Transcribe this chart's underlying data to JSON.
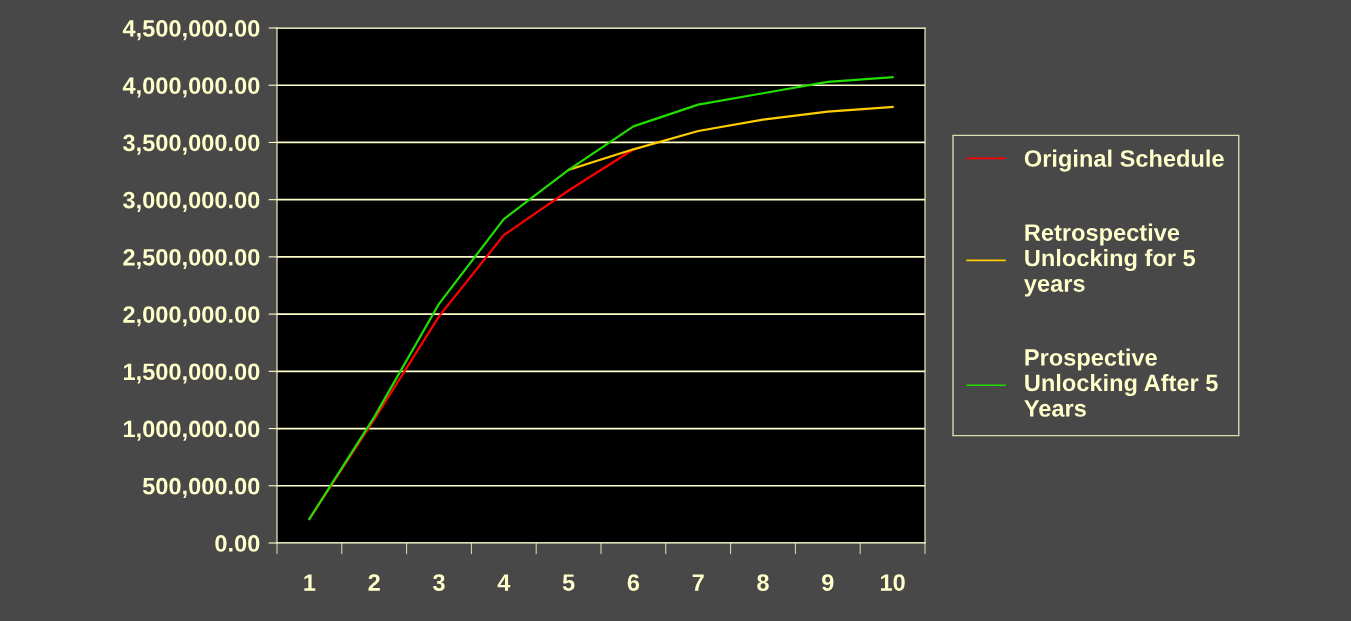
{
  "chart_data": {
    "type": "line",
    "categories": [
      "1",
      "2",
      "3",
      "4",
      "5",
      "6",
      "7",
      "8",
      "9",
      "10"
    ],
    "series": [
      {
        "name": "Original Schedule",
        "color": "#ff0000",
        "values": [
          210000,
          1080000,
          1980000,
          2690000,
          3080000,
          3440000,
          null,
          null,
          null,
          null
        ]
      },
      {
        "name": "Retrospective\nUnlocking for 5\nyears",
        "color": "#ffcc00",
        "values": [
          null,
          null,
          null,
          null,
          3260000,
          3440000,
          3600000,
          3700000,
          3770000,
          3810000
        ]
      },
      {
        "name": "Prospective\nUnlocking After 5\nYears",
        "color": "#22dd00",
        "values": [
          210000,
          1100000,
          2090000,
          2830000,
          3260000,
          3640000,
          3830000,
          3930000,
          4030000,
          4070000
        ]
      }
    ],
    "ylim": [
      0,
      4500000
    ],
    "yticks": [
      {
        "value": 0,
        "label": "0.00"
      },
      {
        "value": 500000,
        "label": "500,000.00"
      },
      {
        "value": 1000000,
        "label": "1,000,000.00"
      },
      {
        "value": 1500000,
        "label": "1,500,000.00"
      },
      {
        "value": 2000000,
        "label": "2,000,000.00"
      },
      {
        "value": 2500000,
        "label": "2,500,000.00"
      },
      {
        "value": 3000000,
        "label": "3,000,000.00"
      },
      {
        "value": 3500000,
        "label": "3,500,000.00"
      },
      {
        "value": 4000000,
        "label": "4,000,000.00"
      },
      {
        "value": 4500000,
        "label": "4,500,000.00"
      }
    ],
    "grid": "y",
    "legend": "right",
    "marker": "none",
    "line_style": "solid"
  }
}
